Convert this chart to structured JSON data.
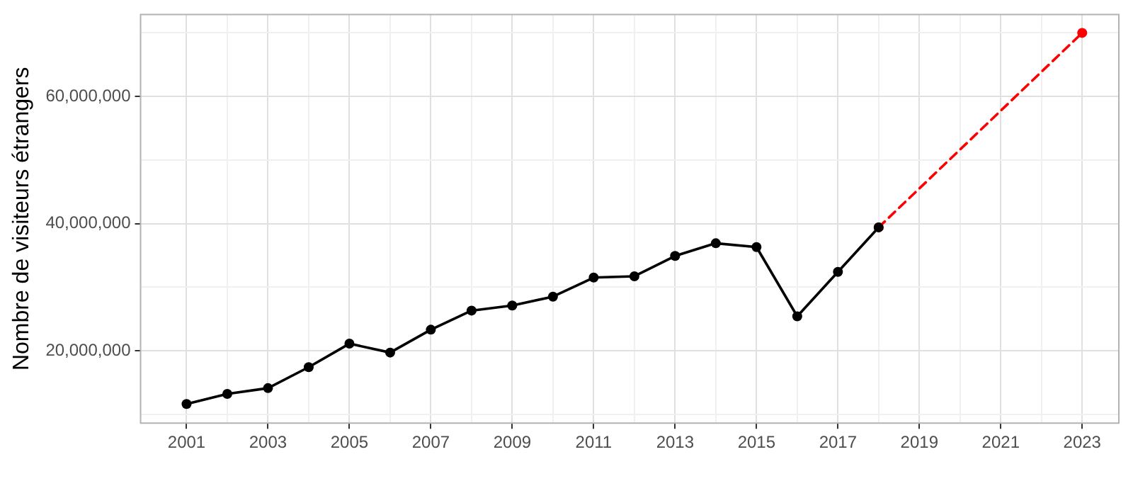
{
  "chart_data": {
    "type": "line",
    "ylabel": "Nombre de visiteurs étrangers",
    "xlim": [
      1999.87,
      2023.9
    ],
    "ylim": [
      8600000,
      72900000
    ],
    "xticks": [
      2001,
      {
        "value": 2002,
        "label": null
      },
      2003,
      {
        "value": 2004,
        "label": null
      },
      2005,
      {
        "value": 2006,
        "label": null
      },
      2007,
      {
        "value": 2008,
        "label": null
      },
      2009,
      {
        "value": 2010,
        "label": null
      },
      2011,
      {
        "value": 2012,
        "label": null
      },
      2013,
      {
        "value": 2014,
        "label": null
      },
      2015,
      {
        "value": 2016,
        "label": null
      },
      2017,
      {
        "value": 2018,
        "label": null
      },
      2019,
      {
        "value": 2020,
        "label": null
      },
      2021,
      {
        "value": 2022,
        "label": null
      },
      2023
    ],
    "yticks": [
      {
        "value": 10000000,
        "label": null
      },
      {
        "value": 20000000,
        "label": "20,000,000"
      },
      {
        "value": 30000000,
        "label": null
      },
      {
        "value": 40000000,
        "label": "40,000,000"
      },
      {
        "value": 50000000,
        "label": null
      },
      {
        "value": 60000000,
        "label": "60,000,000"
      },
      {
        "value": 70000000,
        "label": null
      }
    ],
    "grid": true,
    "legend": false,
    "marker": "circle",
    "series": [
      {
        "color": "#000000",
        "line_style": "solid",
        "x": [
          2001,
          2002,
          2003,
          2004,
          2005,
          2006,
          2007,
          2008,
          2009,
          2010,
          2011,
          2012,
          2013,
          2014,
          2015,
          2016,
          2017,
          2018
        ],
        "values": [
          11600000,
          13200000,
          14100000,
          17400000,
          21100000,
          19700000,
          23300000,
          26300000,
          27100000,
          28500000,
          31500000,
          31700000,
          34900000,
          36900000,
          36300000,
          25400000,
          32400000,
          39400000
        ]
      },
      {
        "color": "#ff0000",
        "line_style": "dashed",
        "x": [
          2018,
          2023
        ],
        "values": [
          39400000,
          70000000
        ]
      }
    ]
  }
}
